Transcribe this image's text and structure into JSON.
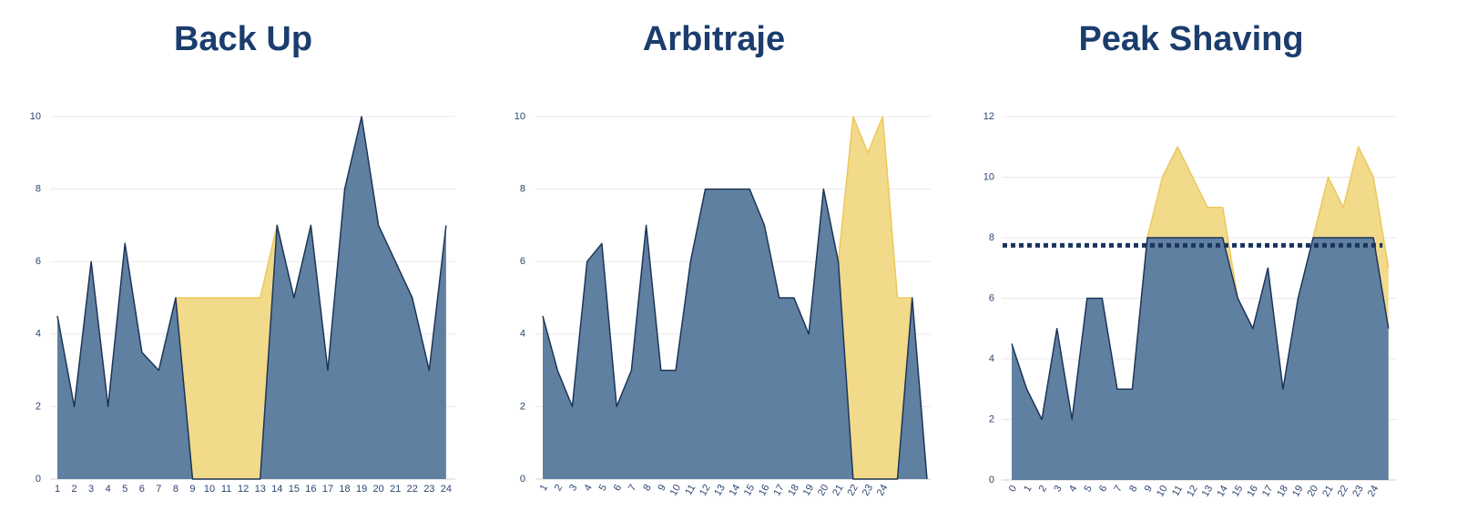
{
  "chart_data": [
    {
      "type": "area",
      "title": "Back Up",
      "categories": [
        "1",
        "2",
        "3",
        "4",
        "5",
        "6",
        "7",
        "8",
        "9",
        "10",
        "11",
        "12",
        "13",
        "14",
        "15",
        "16",
        "17",
        "18",
        "19",
        "20",
        "21",
        "22",
        "23",
        "24"
      ],
      "series": [
        {
          "color": "#f2da8b",
          "edge_color": "#ecc85a",
          "values": [
            null,
            null,
            null,
            null,
            null,
            null,
            null,
            5,
            5,
            5,
            5,
            5,
            5,
            7,
            null,
            null,
            null,
            null,
            null,
            null,
            null,
            null,
            null,
            null
          ]
        },
        {
          "color": "#6080a2",
          "edge_color": "#1c3558",
          "values": [
            4.5,
            2,
            6,
            2,
            6.5,
            3.5,
            3,
            5,
            0,
            0,
            0,
            0,
            0,
            7,
            5,
            7,
            3,
            8,
            10,
            7,
            6,
            5,
            3,
            7
          ]
        }
      ],
      "ylim": [
        0,
        10
      ],
      "yticks": [
        0,
        2,
        4,
        6,
        8,
        10
      ],
      "grid": true
    },
    {
      "type": "area",
      "title": "Arbitraje",
      "categories": [
        "1",
        "2",
        "3",
        "4",
        "5",
        "6",
        "7",
        "8",
        "9",
        "10",
        "11",
        "12",
        "13",
        "14",
        "15",
        "16",
        "17",
        "18",
        "19",
        "20",
        "21",
        "22",
        "23",
        "24",
        null,
        null,
        null
      ],
      "series": [
        {
          "color": "#f2da8b",
          "edge_color": "#ecc85a",
          "values": [
            null,
            null,
            null,
            null,
            null,
            null,
            null,
            null,
            null,
            null,
            null,
            null,
            null,
            null,
            null,
            null,
            null,
            null,
            null,
            null,
            6,
            10,
            9,
            10,
            5,
            5,
            null
          ]
        },
        {
          "color": "#6080a2",
          "edge_color": "#1c3558",
          "values": [
            4.5,
            3,
            2,
            6,
            6.5,
            2,
            3,
            7,
            3,
            3,
            6,
            8,
            8,
            8,
            8,
            7,
            5,
            5,
            4,
            8,
            6,
            0,
            0,
            0,
            0,
            5,
            0
          ]
        }
      ],
      "ylim": [
        0,
        10
      ],
      "yticks": [
        0,
        2,
        4,
        6,
        8,
        10
      ],
      "grid": true
    },
    {
      "type": "area",
      "title": "Peak Shaving",
      "categories": [
        "0",
        "1",
        "2",
        "3",
        "4",
        "5",
        "6",
        "7",
        "8",
        "9",
        "10",
        "11",
        "12",
        "13",
        "14",
        "15",
        "16",
        "17",
        "18",
        "19",
        "20",
        "21",
        "22",
        "23",
        "24",
        null
      ],
      "series": [
        {
          "color": "#f2da8b",
          "edge_color": "#ecc85a",
          "values": [
            null,
            null,
            null,
            null,
            null,
            null,
            null,
            null,
            null,
            8,
            10,
            11,
            10,
            9,
            9,
            6,
            null,
            null,
            null,
            null,
            8,
            10,
            9,
            11,
            10,
            7
          ]
        },
        {
          "color": "#6080a2",
          "edge_color": "#1c3558",
          "values": [
            4.5,
            3,
            2,
            5,
            2,
            6,
            6,
            3,
            3,
            8,
            8,
            8,
            8,
            8,
            8,
            6,
            5,
            7,
            3,
            6,
            8,
            8,
            8,
            8,
            8,
            5
          ]
        }
      ],
      "threshold": 7.75,
      "threshold_color": "#1b3560",
      "ylim": [
        0,
        12
      ],
      "yticks": [
        0,
        2,
        4,
        6,
        8,
        10,
        12
      ],
      "grid": true
    }
  ]
}
